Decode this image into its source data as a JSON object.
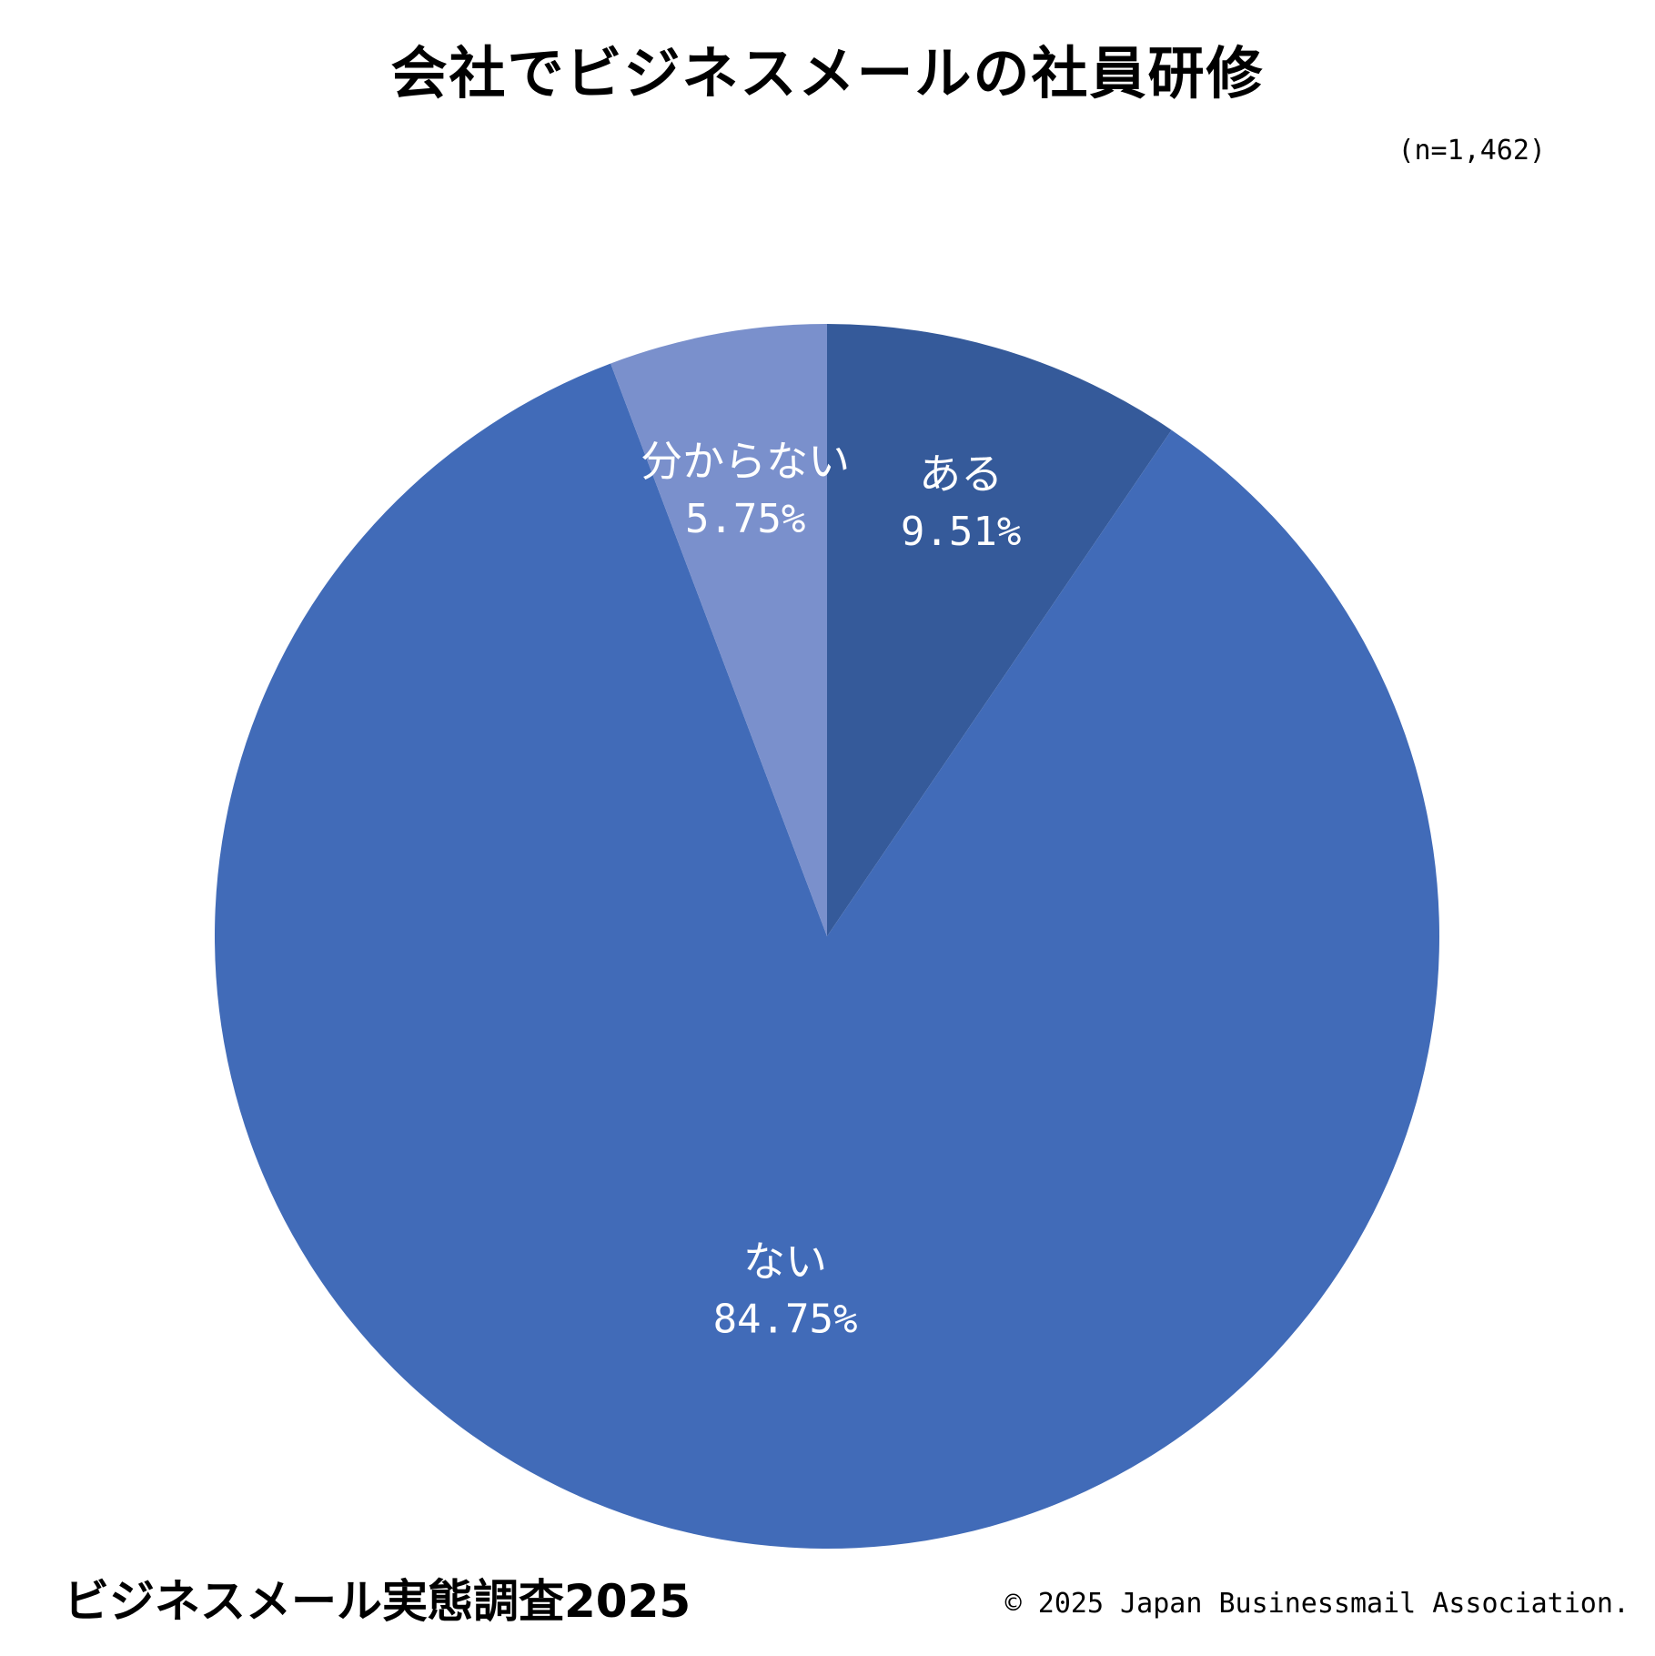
{
  "chart_data": {
    "type": "pie",
    "title": "会社でビジネスメールの社員研修",
    "note": "(n=1,462)",
    "categories": [
      "ある",
      "ない",
      "分からない"
    ],
    "values": [
      9.51,
      84.75,
      5.75
    ],
    "value_labels": [
      "9.51%",
      "84.75%",
      "5.75%"
    ],
    "colors": [
      "#355a9a",
      "#416bb8",
      "#7a90cc"
    ],
    "start_angle_deg": 0,
    "direction": "clockwise",
    "label_color": "#ffffff"
  },
  "footer": {
    "left": "ビジネスメール実態調査2025",
    "right": "© 2025 Japan Businessmail Association."
  }
}
